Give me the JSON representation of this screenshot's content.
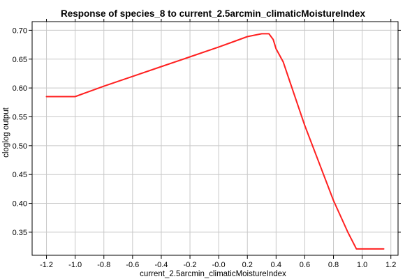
{
  "chart_data": {
    "type": "line",
    "title": "Response of species_8 to current_2.5arcmin_climaticMoistureIndex",
    "xlabel": "current_2.5arcmin_climaticMoistureIndex",
    "ylabel": "cloglog output",
    "xlim": [
      -1.3,
      1.25
    ],
    "ylim": [
      0.31,
      0.715
    ],
    "xticks": [
      -1.2,
      -1.0,
      -0.8,
      -0.6,
      -0.4,
      -0.2,
      -0.0,
      0.2,
      0.4,
      0.6,
      0.8,
      1.0,
      1.2
    ],
    "xtick_labels": [
      "-1.2",
      "-1.0",
      "-0.8",
      "-0.6",
      "-0.4",
      "-0.2",
      "-0.0",
      "0.2",
      "0.4",
      "0.6",
      "0.8",
      "1.0",
      "1.2"
    ],
    "yticks": [
      0.35,
      0.4,
      0.45,
      0.5,
      0.55,
      0.6,
      0.65,
      0.7
    ],
    "ytick_labels": [
      "0.35",
      "0.40",
      "0.45",
      "0.50",
      "0.55",
      "0.60",
      "0.65",
      "0.70"
    ],
    "grid": true,
    "series": [
      {
        "color": "#ff2020",
        "x": [
          -1.2,
          -1.0,
          -0.8,
          -0.6,
          -0.4,
          -0.2,
          0.0,
          0.1,
          0.2,
          0.3,
          0.35,
          0.38,
          0.4,
          0.45,
          0.5,
          0.6,
          0.7,
          0.8,
          0.9,
          0.96,
          1.0,
          1.15
        ],
        "y": [
          0.585,
          0.585,
          0.603,
          0.62,
          0.637,
          0.654,
          0.671,
          0.68,
          0.689,
          0.694,
          0.694,
          0.684,
          0.668,
          0.645,
          0.608,
          0.535,
          0.47,
          0.405,
          0.35,
          0.321,
          0.321,
          0.321
        ]
      }
    ]
  }
}
